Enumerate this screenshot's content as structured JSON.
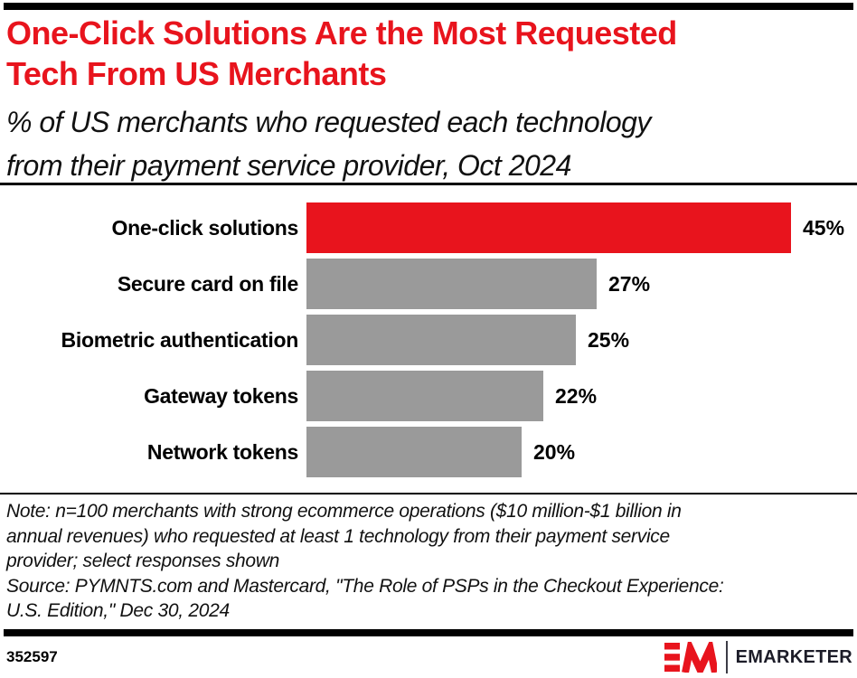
{
  "header": {
    "title_lines": [
      "One-Click Solutions Are the Most Requested",
      "Tech From US Merchants"
    ],
    "subtitle_lines": [
      "% of US merchants who requested each technology",
      "from their payment service provider, Oct 2024"
    ],
    "title_color": "#e8141d"
  },
  "chart_data": {
    "type": "bar",
    "orientation": "horizontal",
    "title": "One-Click Solutions Are the Most Requested Tech From US Merchants",
    "subtitle": "% of US merchants who requested each technology from their payment service provider, Oct 2024",
    "categories": [
      "One-click solutions",
      "Secure card on file",
      "Biometric authentication",
      "Gateway tokens",
      "Network tokens"
    ],
    "values": [
      45,
      27,
      25,
      22,
      20
    ],
    "value_labels": [
      "45%",
      "27%",
      "25%",
      "22%",
      "20%"
    ],
    "unit": "%",
    "xlim": [
      0,
      48
    ],
    "grid": false,
    "legend": "none",
    "highlight_index": 0,
    "colors": {
      "highlight": "#e8141d",
      "default": "#9a9a9a"
    }
  },
  "notes": {
    "lines": [
      "Note: n=100 merchants with strong ecommerce operations ($10 million-$1 billion in",
      "annual revenues) who requested at least 1 technology from their payment service",
      "provider; select responses shown",
      "Source: PYMNTS.com and Mastercard, \"The Role of PSPs in the Checkout Experience:",
      "U.S. Edition,\" Dec 30, 2024"
    ]
  },
  "footer": {
    "chart_id": "352597",
    "brand": "EMARKETER",
    "brand_color": "#1c1c28",
    "logo_red": "#e8141d"
  }
}
